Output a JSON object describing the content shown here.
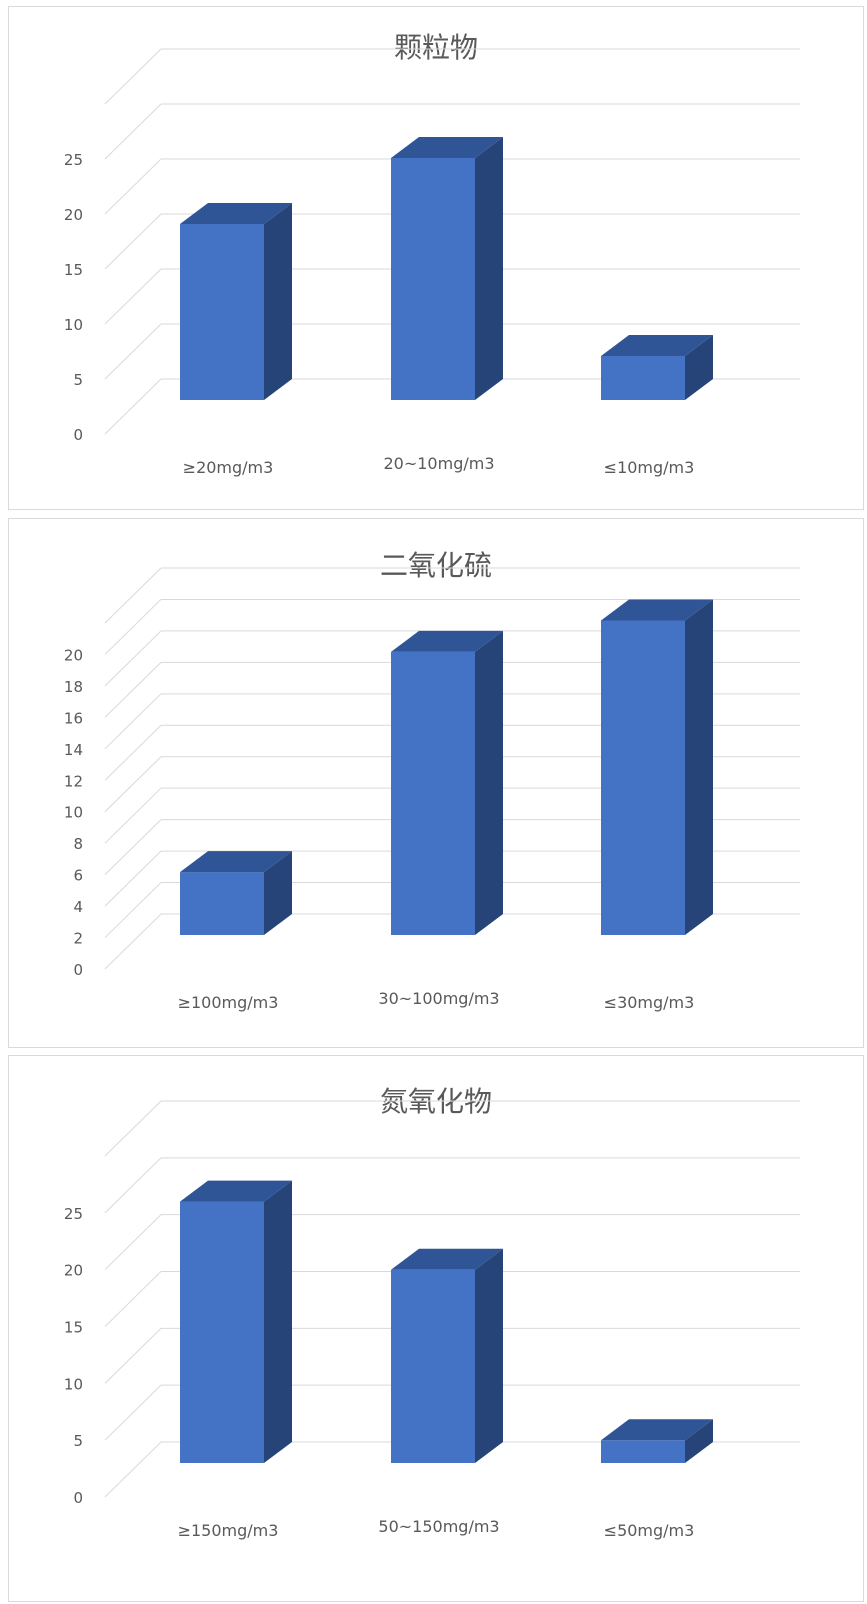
{
  "charts": [
    {
      "title": "颗粒物",
      "chart_data": {
        "type": "bar",
        "categories": [
          "≥20mg/m3",
          "20~10mg/m3",
          "≤10mg/m3"
        ],
        "values": [
          16,
          22,
          4
        ],
        "ylim": [
          0,
          25
        ],
        "yticks": [
          0,
          5,
          10,
          15,
          20,
          25
        ],
        "grid": true,
        "bar_color": "#4472C4"
      }
    },
    {
      "title": "二氧化硫",
      "chart_data": {
        "type": "bar",
        "categories": [
          "≥100mg/m3",
          "30~100mg/m3",
          "≤30mg/m3"
        ],
        "values": [
          4,
          18,
          20
        ],
        "ylim": [
          0,
          20
        ],
        "yticks": [
          0,
          2,
          4,
          6,
          8,
          10,
          12,
          14,
          16,
          18,
          20
        ],
        "grid": true,
        "bar_color": "#4472C4"
      }
    },
    {
      "title": "氮氧化物",
      "chart_data": {
        "type": "bar",
        "categories": [
          "≥150mg/m3",
          "50~150mg/m3",
          "≤50mg/m3"
        ],
        "values": [
          23,
          17,
          2
        ],
        "ylim": [
          0,
          25
        ],
        "yticks": [
          0,
          5,
          10,
          15,
          20,
          25
        ],
        "grid": true,
        "bar_color": "#4472C4"
      }
    }
  ]
}
